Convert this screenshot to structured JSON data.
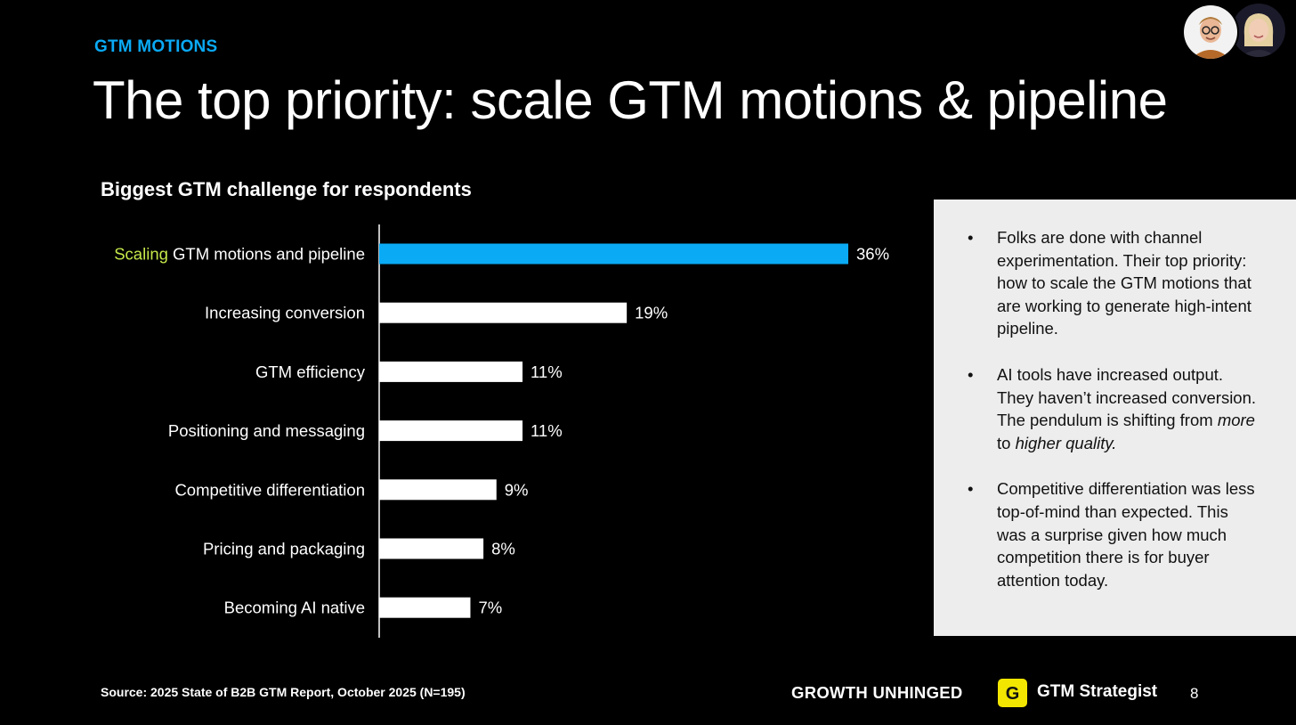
{
  "header": {
    "eyebrow": "GTM MOTIONS",
    "title": "The top priority: scale GTM motions & pipeline"
  },
  "colors": {
    "accent_blue": "#0aaaf5",
    "highlight_green": "#c6e84a",
    "bar_default": "#ffffff",
    "panel_bg": "#ededed",
    "logo_yellow": "#f2e600"
  },
  "chart_data": {
    "type": "bar",
    "orientation": "horizontal",
    "title": "Biggest GTM challenge for respondents",
    "categories": [
      "Scaling GTM motions and pipeline",
      "Increasing conversion",
      "GTM efficiency",
      "Positioning and messaging",
      "Competitive differentiation",
      "Pricing and packaging",
      "Becoming AI native"
    ],
    "highlight_word": "Scaling",
    "values": [
      36,
      19,
      11,
      11,
      9,
      8,
      7
    ],
    "value_labels": [
      "36%",
      "19%",
      "11%",
      "11%",
      "9%",
      "8%",
      "7%"
    ],
    "highlight_index": 0,
    "xlim": [
      0,
      36
    ],
    "grid": false,
    "legend": "none"
  },
  "panel": {
    "bullet_char": "•",
    "b1": "Folks are done with channel experimentation. Their top priority: how to scale the GTM motions that are working to generate high-intent pipeline.",
    "b2_a": "AI tools have increased output. They haven’t increased conversion. The pendulum is shifting from ",
    "b2_em1": "more",
    "b2_b": " to ",
    "b2_em2": "higher quality.",
    "b3": "Competitive differentiation was less top-of-mind than expected. This was a surprise given how much competition there is for buyer attention today."
  },
  "footer": {
    "source": "Source: 2025 State of B2B GTM Report, October 2025 (N=195)",
    "brand1": "GROWTH UNHINGED",
    "logo_letter": "G",
    "brand2": "GTM Strategist",
    "page_number": "8"
  }
}
